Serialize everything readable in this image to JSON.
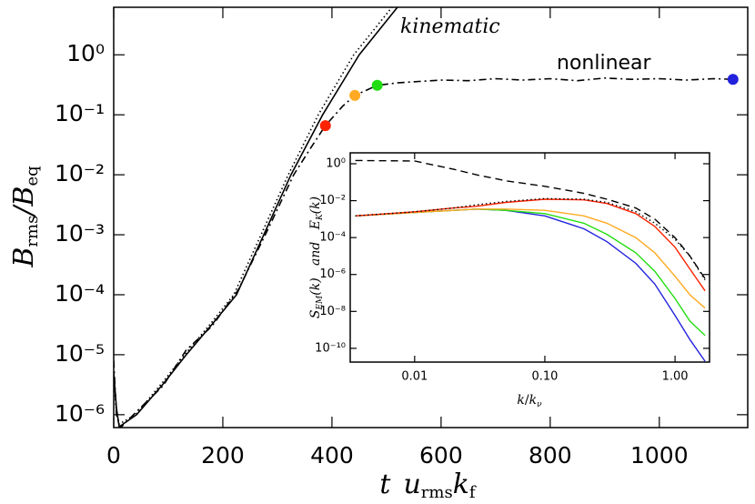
{
  "chart_data": [
    {
      "type": "line",
      "xlabel": [
        "t",
        "u",
        "rms",
        "k",
        "f"
      ],
      "ylabel": [
        "B",
        "rms",
        "/",
        "B",
        "eq"
      ],
      "annotations": [
        "kinematic",
        "nonlinear"
      ],
      "xlim": [
        0,
        1162
      ],
      "ylim": [
        6.1e-07,
        6.2
      ],
      "ylog": true,
      "xticks": [
        0,
        200,
        400,
        600,
        800,
        1000
      ],
      "yticks": [
        {
          "value": 1e-06,
          "label": "10⁻⁶"
        },
        {
          "value": 1e-05,
          "label": "10⁻⁵"
        },
        {
          "value": 0.0001,
          "label": "10⁻⁴"
        },
        {
          "value": 0.001,
          "label": "10⁻³"
        },
        {
          "value": 0.01,
          "label": "10⁻²"
        },
        {
          "value": 0.1,
          "label": "10⁻¹"
        },
        {
          "value": 1,
          "label": "10⁰"
        }
      ],
      "series": [
        {
          "color": "#000000",
          "style": "solid",
          "x": [
            0,
            5,
            10,
            42,
            90,
            133,
            180,
            225,
            275,
            325,
            383,
            450,
            520
          ],
          "values": [
            5e-06,
            1.3e-06,
            6.3e-07,
            1e-06,
            3.2e-06,
            1e-05,
            3.2e-05,
            0.0001,
            0.001,
            0.01,
            0.1,
            1,
            6.2
          ]
        },
        {
          "color": "#000000",
          "style": "dotted",
          "x": [
            0,
            5,
            10,
            40,
            90,
            130,
            180,
            220,
            270,
            320,
            375,
            440,
            510
          ],
          "values": [
            4e-06,
            1.1e-06,
            7e-07,
            1e-06,
            3.5e-06,
            1e-05,
            3.5e-05,
            0.0001,
            0.001,
            0.01,
            0.1,
            1,
            6.2
          ]
        },
        {
          "color": "#000000",
          "style": "dashdot",
          "x": [
            0,
            5,
            12,
            45,
            90,
            133,
            180,
            228,
            280,
            330,
            360,
            388,
            420,
            442,
            483,
            520,
            560,
            600,
            650,
            700,
            750,
            800,
            850,
            900,
            950,
            1000,
            1050,
            1100,
            1135
          ],
          "values": [
            8e-06,
            1e-06,
            6e-07,
            1.2e-06,
            3e-06,
            1.2e-05,
            3e-05,
            0.00012,
            0.0011,
            0.01,
            0.027,
            0.066,
            0.14,
            0.21,
            0.31,
            0.34,
            0.36,
            0.38,
            0.37,
            0.4,
            0.38,
            0.4,
            0.37,
            0.41,
            0.39,
            0.4,
            0.38,
            0.4,
            0.39
          ]
        }
      ],
      "markers": {
        "x": [
          388,
          442,
          483,
          1135
        ],
        "values": [
          0.066,
          0.21,
          0.31,
          0.39
        ],
        "colors": [
          "#ff2200",
          "#ffaa22",
          "#22dd11",
          "#2222dd"
        ]
      }
    },
    {
      "type": "line",
      "xlabel": [
        "k",
        "/",
        "k",
        "ν"
      ],
      "ylabel": [
        "S",
        "EM",
        "(k)   and   ",
        "E",
        "K",
        "(k)"
      ],
      "xlim": [
        0.0032,
        1.84
      ],
      "ylim": [
        1.8e-11,
        3.9
      ],
      "xlog": true,
      "ylog": true,
      "xticks": [
        0.01,
        {
          "value": 0.1,
          "label": "0.10"
        },
        {
          "value": 1,
          "label": "1.00"
        }
      ],
      "yticks": [
        {
          "value": 1e-10,
          "label": "10⁻¹⁰"
        },
        {
          "value": 1e-08,
          "label": "10⁻⁸"
        },
        {
          "value": 1e-06,
          "label": "10⁻⁶"
        },
        {
          "value": 0.0001,
          "label": "10⁻⁴"
        },
        {
          "value": 0.01,
          "label": "10⁻²"
        },
        {
          "value": 1,
          "label": "10⁰"
        }
      ],
      "x": [
        0.0035,
        0.01,
        0.02,
        0.03,
        0.05,
        0.1,
        0.2,
        0.3,
        0.5,
        0.7,
        1.0,
        1.3,
        1.7
      ],
      "series": [
        {
          "color": "#000000",
          "style": "dashed",
          "values": [
            1.5,
            1.4,
            0.5,
            0.25,
            0.12,
            0.06,
            0.025,
            0.012,
            0.004,
            0.001,
            0.0001,
            1e-05,
            6e-07
          ]
        },
        {
          "color": "#2222dd",
          "style": "solid",
          "values": [
            0.0015,
            0.0023,
            0.003,
            0.0035,
            0.003,
            0.0015,
            0.0003,
            6e-05,
            4e-06,
            3e-07,
            6e-09,
            3e-10,
            2e-11
          ]
        },
        {
          "color": "#22dd11",
          "style": "solid",
          "values": [
            0.0015,
            0.0023,
            0.003,
            0.0035,
            0.003,
            0.002,
            0.0006,
            0.00015,
            1.5e-05,
            1.5e-06,
            5e-08,
            3e-09,
            5e-10
          ]
        },
        {
          "color": "#ffaa22",
          "style": "solid",
          "values": [
            0.0015,
            0.0023,
            0.003,
            0.0035,
            0.0035,
            0.003,
            0.0015,
            0.0006,
            0.0001,
            1.5e-05,
            8e-07,
            8e-08,
            1.5e-08
          ]
        },
        {
          "color": "#ff2200",
          "style": "solid",
          "values": [
            0.0015,
            0.0025,
            0.004,
            0.005,
            0.008,
            0.012,
            0.011,
            0.007,
            0.002,
            0.0004,
            3e-05,
            2e-06,
            1.3e-07
          ]
        },
        {
          "color": "#000000",
          "style": "dotted",
          "values": [
            0.0015,
            0.0025,
            0.004,
            0.006,
            0.009,
            0.013,
            0.012,
            0.008,
            0.0025,
            0.0006,
            8e-05,
            1e-05,
            5e-07
          ]
        }
      ]
    }
  ]
}
